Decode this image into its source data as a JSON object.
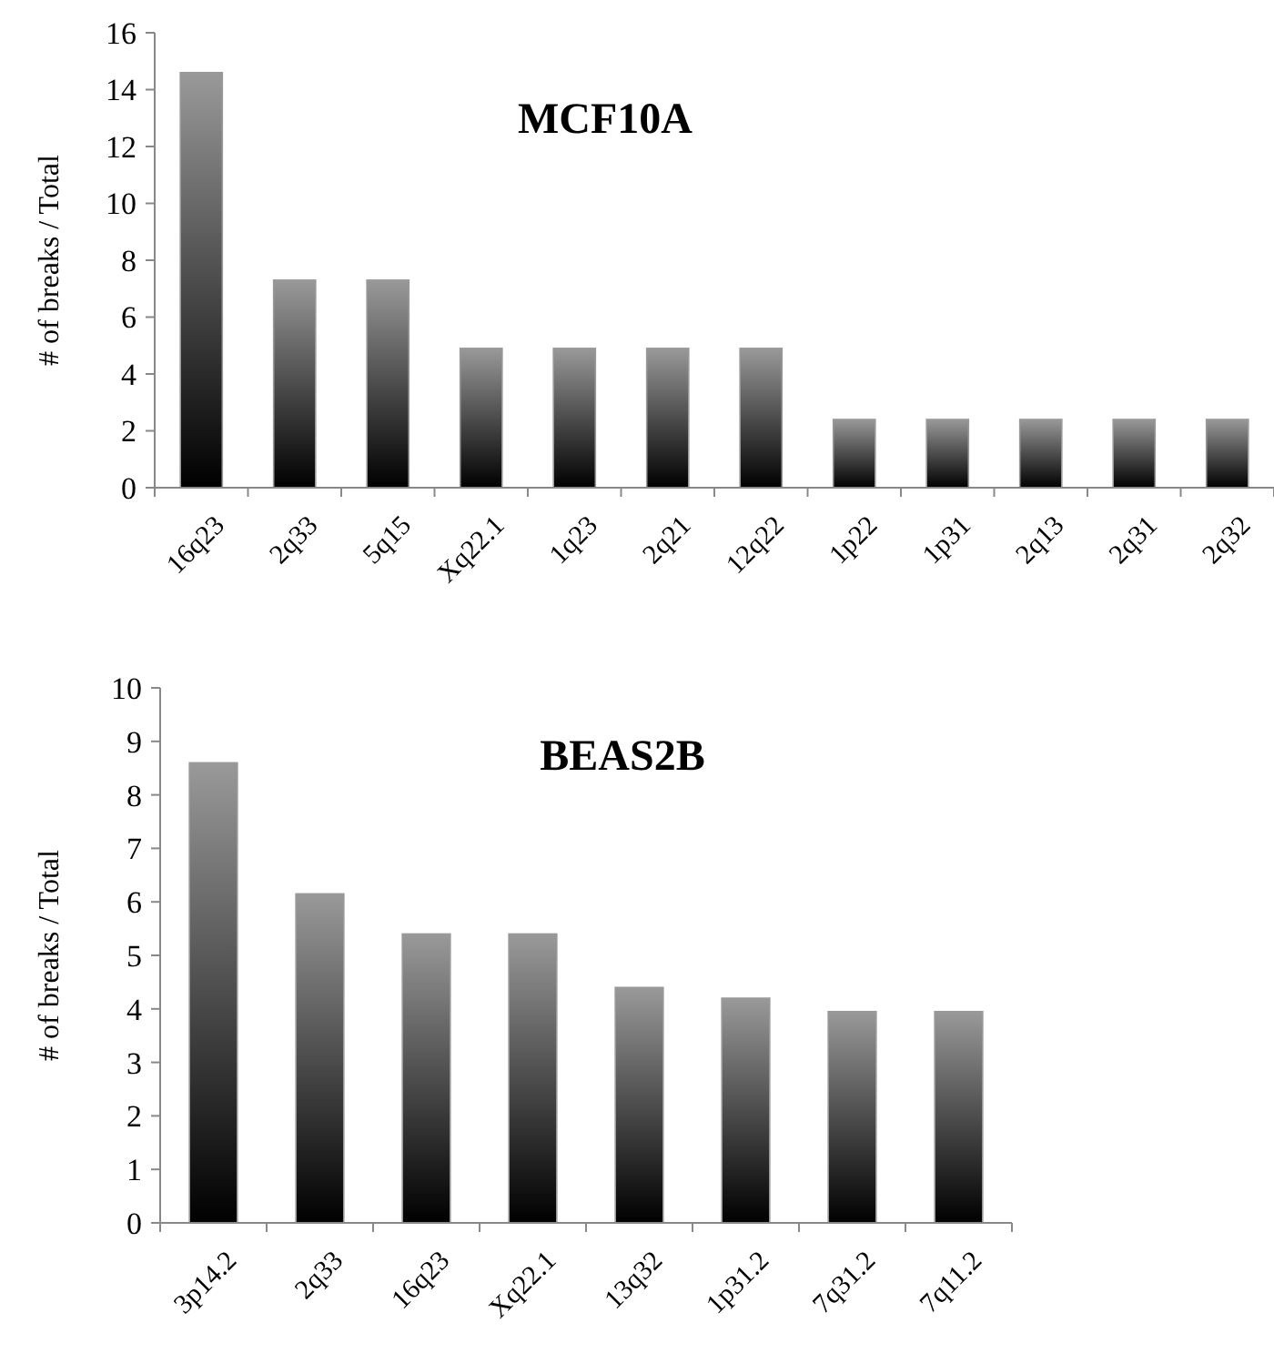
{
  "chart_data": [
    {
      "type": "bar",
      "title": "MCF10A",
      "ylabel": "# of breaks / Total",
      "categories": [
        "16q23",
        "2q33",
        "5q15",
        "Xq22.1",
        "1q23",
        "2q21",
        "12q22",
        "1p22",
        "1p31",
        "2q13",
        "2q31",
        "2q32"
      ],
      "values": [
        14.6,
        7.3,
        7.3,
        4.9,
        4.9,
        4.9,
        4.9,
        2.4,
        2.4,
        2.4,
        2.4,
        2.4
      ],
      "color": "#999999",
      "ylim": [
        0,
        16
      ],
      "yticks": [
        0,
        2,
        4,
        6,
        8,
        10,
        12,
        14,
        16
      ]
    },
    {
      "type": "bar",
      "title": "BEAS2B",
      "ylabel": "# of breaks / Total",
      "categories": [
        "3p14.2",
        "2q33",
        "16q23",
        "Xq22.1",
        "13q32",
        "1p31.2",
        "7q31.2",
        "7q11.2"
      ],
      "values": [
        8.6,
        6.15,
        5.4,
        5.4,
        4.4,
        4.2,
        3.95,
        3.95
      ],
      "color": "#999999",
      "ylim": [
        0,
        10
      ],
      "yticks": [
        0,
        1,
        2,
        3,
        4,
        5,
        6,
        7,
        8,
        9,
        10
      ]
    }
  ]
}
